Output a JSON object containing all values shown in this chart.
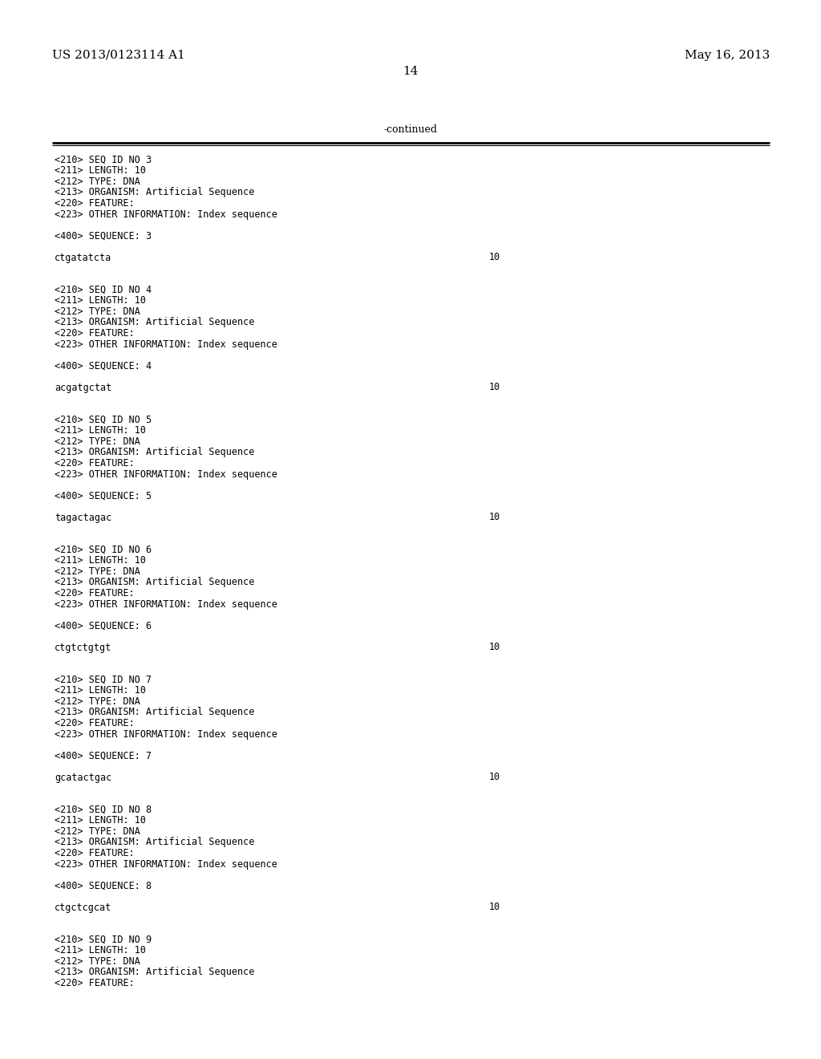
{
  "background_color": "#ffffff",
  "top_left_text": "US 2013/0123114 A1",
  "top_right_text": "May 16, 2013",
  "page_number": "14",
  "continued_label": "-continued",
  "body_content": [
    {
      "text": "<210> SEQ ID NO 3",
      "type": "meta"
    },
    {
      "text": "<211> LENGTH: 10",
      "type": "meta"
    },
    {
      "text": "<212> TYPE: DNA",
      "type": "meta"
    },
    {
      "text": "<213> ORGANISM: Artificial Sequence",
      "type": "meta"
    },
    {
      "text": "<220> FEATURE:",
      "type": "meta"
    },
    {
      "text": "<223> OTHER INFORMATION: Index sequence",
      "type": "meta"
    },
    {
      "text": "",
      "type": "blank"
    },
    {
      "text": "<400> SEQUENCE: 3",
      "type": "meta"
    },
    {
      "text": "",
      "type": "blank"
    },
    {
      "text": "ctgatatcta",
      "type": "seq",
      "num": "10"
    },
    {
      "text": "",
      "type": "blank"
    },
    {
      "text": "",
      "type": "blank"
    },
    {
      "text": "<210> SEQ ID NO 4",
      "type": "meta"
    },
    {
      "text": "<211> LENGTH: 10",
      "type": "meta"
    },
    {
      "text": "<212> TYPE: DNA",
      "type": "meta"
    },
    {
      "text": "<213> ORGANISM: Artificial Sequence",
      "type": "meta"
    },
    {
      "text": "<220> FEATURE:",
      "type": "meta"
    },
    {
      "text": "<223> OTHER INFORMATION: Index sequence",
      "type": "meta"
    },
    {
      "text": "",
      "type": "blank"
    },
    {
      "text": "<400> SEQUENCE: 4",
      "type": "meta"
    },
    {
      "text": "",
      "type": "blank"
    },
    {
      "text": "acgatgctat",
      "type": "seq",
      "num": "10"
    },
    {
      "text": "",
      "type": "blank"
    },
    {
      "text": "",
      "type": "blank"
    },
    {
      "text": "<210> SEQ ID NO 5",
      "type": "meta"
    },
    {
      "text": "<211> LENGTH: 10",
      "type": "meta"
    },
    {
      "text": "<212> TYPE: DNA",
      "type": "meta"
    },
    {
      "text": "<213> ORGANISM: Artificial Sequence",
      "type": "meta"
    },
    {
      "text": "<220> FEATURE:",
      "type": "meta"
    },
    {
      "text": "<223> OTHER INFORMATION: Index sequence",
      "type": "meta"
    },
    {
      "text": "",
      "type": "blank"
    },
    {
      "text": "<400> SEQUENCE: 5",
      "type": "meta"
    },
    {
      "text": "",
      "type": "blank"
    },
    {
      "text": "tagactagac",
      "type": "seq",
      "num": "10"
    },
    {
      "text": "",
      "type": "blank"
    },
    {
      "text": "",
      "type": "blank"
    },
    {
      "text": "<210> SEQ ID NO 6",
      "type": "meta"
    },
    {
      "text": "<211> LENGTH: 10",
      "type": "meta"
    },
    {
      "text": "<212> TYPE: DNA",
      "type": "meta"
    },
    {
      "text": "<213> ORGANISM: Artificial Sequence",
      "type": "meta"
    },
    {
      "text": "<220> FEATURE:",
      "type": "meta"
    },
    {
      "text": "<223> OTHER INFORMATION: Index sequence",
      "type": "meta"
    },
    {
      "text": "",
      "type": "blank"
    },
    {
      "text": "<400> SEQUENCE: 6",
      "type": "meta"
    },
    {
      "text": "",
      "type": "blank"
    },
    {
      "text": "ctgtctgtgt",
      "type": "seq",
      "num": "10"
    },
    {
      "text": "",
      "type": "blank"
    },
    {
      "text": "",
      "type": "blank"
    },
    {
      "text": "<210> SEQ ID NO 7",
      "type": "meta"
    },
    {
      "text": "<211> LENGTH: 10",
      "type": "meta"
    },
    {
      "text": "<212> TYPE: DNA",
      "type": "meta"
    },
    {
      "text": "<213> ORGANISM: Artificial Sequence",
      "type": "meta"
    },
    {
      "text": "<220> FEATURE:",
      "type": "meta"
    },
    {
      "text": "<223> OTHER INFORMATION: Index sequence",
      "type": "meta"
    },
    {
      "text": "",
      "type": "blank"
    },
    {
      "text": "<400> SEQUENCE: 7",
      "type": "meta"
    },
    {
      "text": "",
      "type": "blank"
    },
    {
      "text": "gcatactgac",
      "type": "seq",
      "num": "10"
    },
    {
      "text": "",
      "type": "blank"
    },
    {
      "text": "",
      "type": "blank"
    },
    {
      "text": "<210> SEQ ID NO 8",
      "type": "meta"
    },
    {
      "text": "<211> LENGTH: 10",
      "type": "meta"
    },
    {
      "text": "<212> TYPE: DNA",
      "type": "meta"
    },
    {
      "text": "<213> ORGANISM: Artificial Sequence",
      "type": "meta"
    },
    {
      "text": "<220> FEATURE:",
      "type": "meta"
    },
    {
      "text": "<223> OTHER INFORMATION: Index sequence",
      "type": "meta"
    },
    {
      "text": "",
      "type": "blank"
    },
    {
      "text": "<400> SEQUENCE: 8",
      "type": "meta"
    },
    {
      "text": "",
      "type": "blank"
    },
    {
      "text": "ctgctcgcat",
      "type": "seq",
      "num": "10"
    },
    {
      "text": "",
      "type": "blank"
    },
    {
      "text": "",
      "type": "blank"
    },
    {
      "text": "<210> SEQ ID NO 9",
      "type": "meta"
    },
    {
      "text": "<211> LENGTH: 10",
      "type": "meta"
    },
    {
      "text": "<212> TYPE: DNA",
      "type": "meta"
    },
    {
      "text": "<213> ORGANISM: Artificial Sequence",
      "type": "meta"
    },
    {
      "text": "<220> FEATURE:",
      "type": "meta"
    }
  ]
}
